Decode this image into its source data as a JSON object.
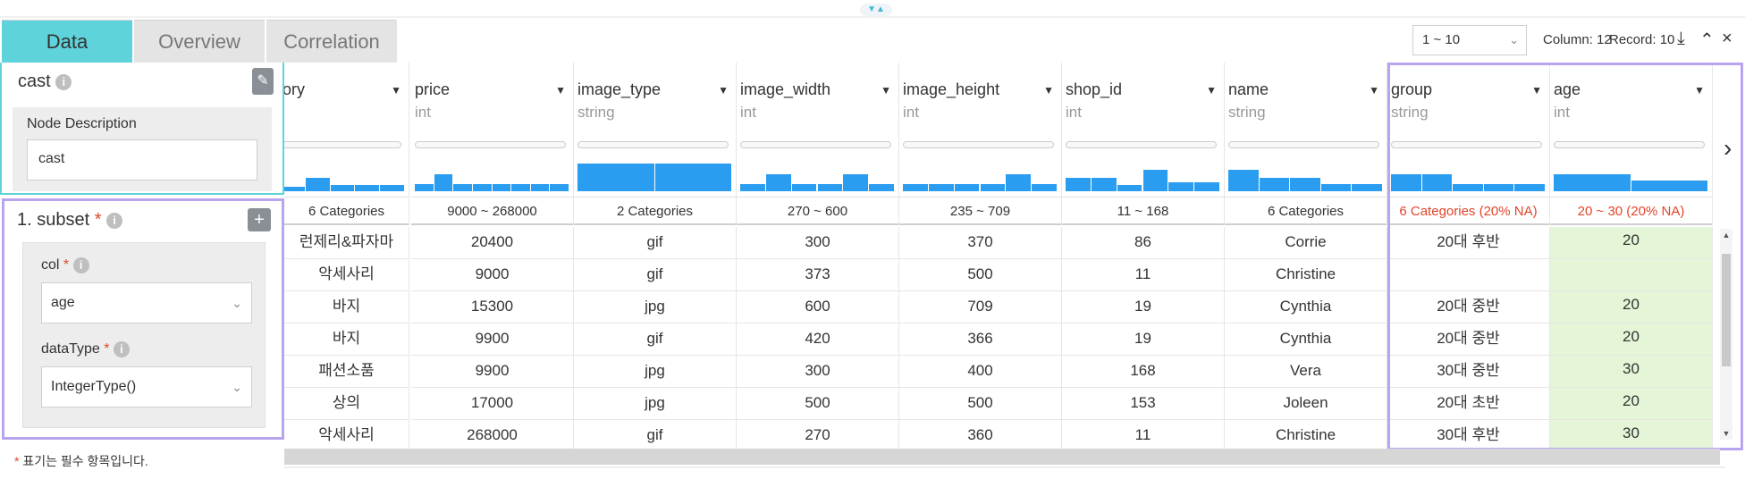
{
  "tabs": [
    {
      "label": "Data",
      "active": true
    },
    {
      "label": "Overview",
      "active": false
    },
    {
      "label": "Correlation",
      "active": false
    }
  ],
  "left_panel": {
    "title": "cast",
    "node_description_label": "Node Description",
    "node_description_value": "cast",
    "subset_title": "1. subset",
    "col_label": "col",
    "col_value": "age",
    "datatype_label": "dataType",
    "datatype_value": "IntegerType()",
    "footnote": "표기는 필수 항목입니다.",
    "required_mark": "*"
  },
  "toolbar": {
    "page_range": "1 ~ 10",
    "column_count": "Column: 12",
    "record_count": "Record: 10"
  },
  "columns": [
    {
      "name": "ory",
      "type": "",
      "summary": "6 Categories",
      "na": false,
      "histogram": [
        0.15,
        0.45,
        0.2,
        0.2,
        0.2
      ]
    },
    {
      "name": "price",
      "type": "int",
      "summary": "9000 ~ 268000",
      "na": false,
      "histogram": [
        0.25,
        0.55,
        0.25,
        0.25,
        0.25,
        0.25,
        0.25,
        0.25
      ]
    },
    {
      "name": "image_type",
      "type": "string",
      "summary": "2 Categories",
      "na": false,
      "histogram": [
        0.9,
        0.9
      ]
    },
    {
      "name": "image_width",
      "type": "int",
      "summary": "270 ~ 600",
      "na": false,
      "histogram": [
        0.25,
        0.55,
        0.25,
        0.25,
        0.55,
        0.25
      ]
    },
    {
      "name": "image_height",
      "type": "int",
      "summary": "235 ~ 709",
      "na": false,
      "histogram": [
        0.25,
        0.25,
        0.25,
        0.25,
        0.55,
        0.25
      ]
    },
    {
      "name": "shop_id",
      "type": "int",
      "summary": "11 ~ 168",
      "na": false,
      "histogram": [
        0.45,
        0.45,
        0.2,
        0.7,
        0.3,
        0.3
      ]
    },
    {
      "name": "name",
      "type": "string",
      "summary": "6 Categories",
      "na": false,
      "histogram": [
        0.7,
        0.45,
        0.45,
        0.25,
        0.25
      ]
    },
    {
      "name": "group",
      "type": "string",
      "summary": "6 Categories (20% NA)",
      "na": true,
      "histogram": [
        0.55,
        0.55,
        0.25,
        0.25,
        0.25
      ]
    },
    {
      "name": "age",
      "type": "int",
      "summary": "20 ~ 30 (20% NA)",
      "na": true,
      "histogram": [
        0.55,
        0.35
      ]
    }
  ],
  "rows": [
    [
      "런제리&파자마",
      "20400",
      "gif",
      "300",
      "370",
      "86",
      "Corrie",
      "20대 후반",
      "20"
    ],
    [
      "악세사리",
      "9000",
      "gif",
      "373",
      "500",
      "11",
      "Christine",
      "",
      ""
    ],
    [
      "바지",
      "15300",
      "jpg",
      "600",
      "709",
      "19",
      "Cynthia",
      "20대 중반",
      "20"
    ],
    [
      "바지",
      "9900",
      "gif",
      "420",
      "366",
      "19",
      "Cynthia",
      "20대 중반",
      "20"
    ],
    [
      "패션소품",
      "9900",
      "jpg",
      "300",
      "400",
      "168",
      "Vera",
      "30대 중반",
      "30"
    ],
    [
      "상의",
      "17000",
      "jpg",
      "500",
      "500",
      "153",
      "Joleen",
      "20대 초반",
      "20"
    ],
    [
      "악세사리",
      "268000",
      "gif",
      "270",
      "360",
      "11",
      "Christine",
      "30대 후반",
      "30"
    ]
  ],
  "colors": {
    "accent": "#5fd3db",
    "highlight": "#b9a4f0",
    "histogram": "#2a9df0",
    "na_text": "#e2452a",
    "age_cell": "#e4f5d8"
  },
  "icons": [
    "info-icon",
    "edit-icon",
    "plus-icon",
    "chevron-down-icon",
    "sort-arrow-icon",
    "download-icon",
    "collapse-icon",
    "close-icon",
    "next-arrow-icon"
  ]
}
